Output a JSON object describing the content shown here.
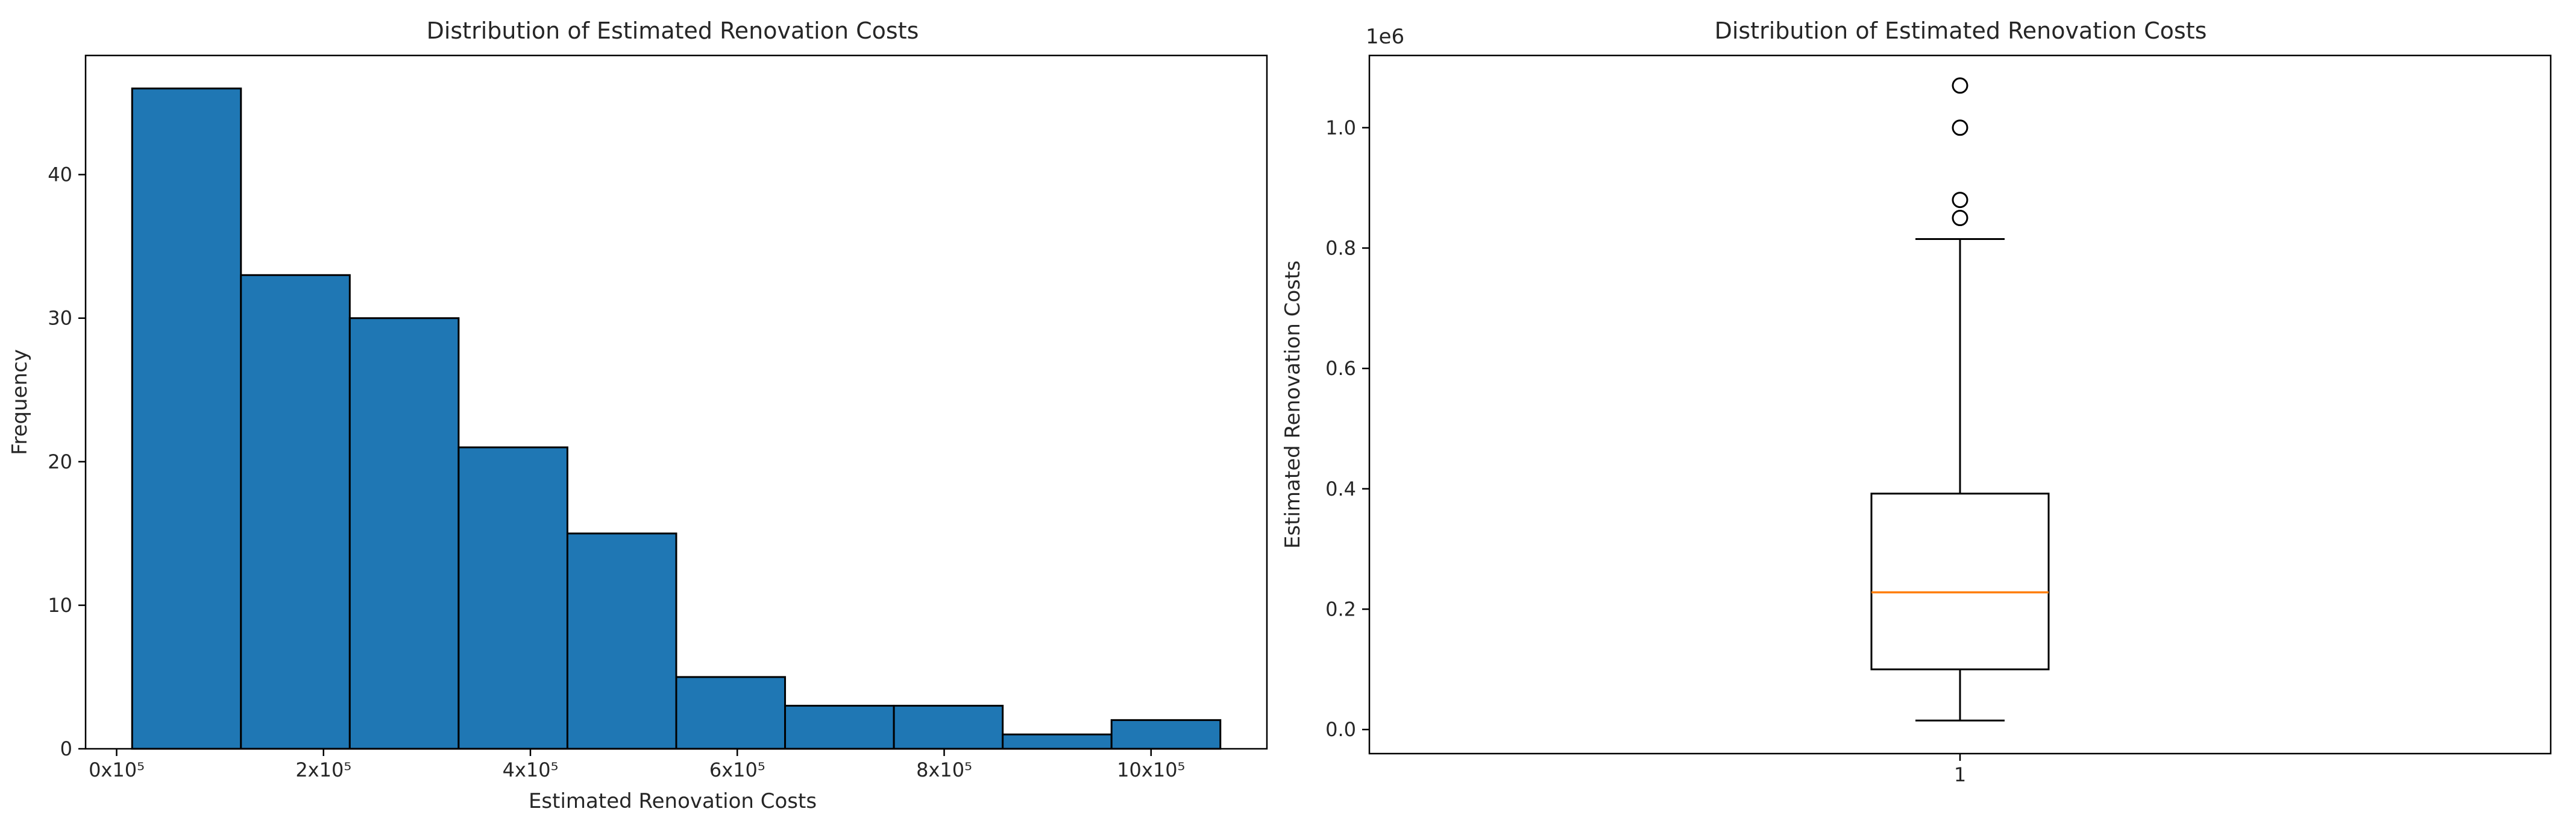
{
  "chart_data": [
    {
      "type": "bar",
      "title": "Distribution of Estimated Renovation Costs",
      "xlabel": "Estimated Renovation Costs",
      "ylabel": "Frequency",
      "bin_edges": [
        15000,
        120200,
        225400,
        330600,
        435800,
        541000,
        646200,
        751400,
        856600,
        961800,
        1067000
      ],
      "values": [
        46,
        33,
        30,
        21,
        15,
        5,
        3,
        3,
        1,
        2
      ],
      "xlim": [
        -30000,
        1112000
      ],
      "ylim": [
        0,
        48.3
      ],
      "xticks": [
        0,
        200000,
        400000,
        600000,
        800000,
        1000000
      ],
      "xtick_labels": [
        "0x10⁵",
        "2x10⁵",
        "4x10⁵",
        "6x10⁵",
        "8x10⁵",
        "10x10⁵"
      ],
      "yticks": [
        0,
        10,
        20,
        30,
        40
      ],
      "ytick_labels": [
        "0",
        "10",
        "20",
        "30",
        "40"
      ],
      "bar_color": "#1f77b4",
      "edge_color": "#000000",
      "grid": false
    },
    {
      "type": "box",
      "title": "Distribution of Estimated Renovation Costs",
      "xlabel": "",
      "ylabel": "Estimated Renovation Costs",
      "offset_text": "1e6",
      "categories": [
        "1"
      ],
      "box": {
        "whisker_low": 0.015,
        "q1": 0.1,
        "median": 0.228,
        "q3": 0.392,
        "whisker_high": 0.815,
        "outliers": [
          0.85,
          0.88,
          1.0,
          1.07
        ]
      },
      "ylim": [
        -0.04,
        1.12
      ],
      "yticks": [
        0,
        0.2,
        0.4,
        0.6,
        0.8,
        1.0
      ],
      "ytick_labels": [
        "0.0",
        "0.2",
        "0.4",
        "0.6",
        "0.8",
        "1.0"
      ],
      "median_color": "#ff7f0e",
      "grid": false
    }
  ]
}
